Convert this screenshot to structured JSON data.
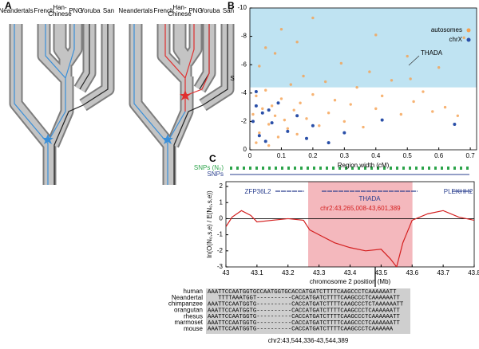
{
  "panel_labels": [
    "A",
    "B",
    "C"
  ],
  "tree_labels": [
    "Neandertals",
    "French",
    "Han-\nChinese",
    "PNG",
    "Yoruba",
    "San"
  ],
  "chart_data": [
    {
      "type": "scatter",
      "xlabel": "Region width (cM)",
      "ylabel": "S",
      "xlim": [
        0,
        0.72
      ],
      "ylim": [
        0,
        -10
      ],
      "xticks": [
        0,
        0.1,
        0.2,
        0.3,
        0.4,
        0.5,
        0.6,
        0.7
      ],
      "yticks": [
        -10,
        -8,
        -6,
        -4,
        -2,
        0
      ],
      "highlight_range": [
        -10,
        -4.4
      ],
      "highlight_color": "#bfe3f2",
      "legend": "upper right",
      "annotation": "THADA",
      "series": [
        {
          "name": "autosomes",
          "color": "#f5a050",
          "x": [
            0.01,
            0.02,
            0.03,
            0.04,
            0.05,
            0.06,
            0.07,
            0.08,
            0.09,
            0.1,
            0.11,
            0.12,
            0.13,
            0.14,
            0.15,
            0.16,
            0.17,
            0.18,
            0.2,
            0.22,
            0.24,
            0.25,
            0.27,
            0.29,
            0.3,
            0.32,
            0.34,
            0.36,
            0.38,
            0.4,
            0.42,
            0.45,
            0.48,
            0.5,
            0.51,
            0.52,
            0.55,
            0.58,
            0.6,
            0.62,
            0.66,
            0.68,
            0.05,
            0.1,
            0.2,
            0.03,
            0.08,
            0.15,
            0.4,
            0.02,
            0.06
          ],
          "values": [
            -2.5,
            -3.8,
            -1.2,
            -2.9,
            -4.2,
            -1.8,
            -3.1,
            -2.4,
            -0.9,
            -3.6,
            -2.1,
            -1.5,
            -4.6,
            -2.8,
            -1.1,
            -3.3,
            -5.2,
            -2.2,
            -3.9,
            -1.7,
            -4.8,
            -2.6,
            -3.5,
            -6.1,
            -2.0,
            -3.2,
            -4.4,
            -1.6,
            -5.5,
            -2.9,
            -3.8,
            -4.9,
            -2.5,
            -6.6,
            -5.0,
            -3.4,
            -4.1,
            -2.7,
            -5.8,
            -3.0,
            -2.4,
            -7.9,
            -7.2,
            -8.5,
            -9.3,
            -5.9,
            -6.8,
            -7.6,
            -8.1,
            -0.5,
            -0.3
          ]
        },
        {
          "name": "chrX",
          "color": "#2a4fa8",
          "x": [
            0.01,
            0.02,
            0.03,
            0.04,
            0.05,
            0.07,
            0.09,
            0.12,
            0.15,
            0.18,
            0.2,
            0.25,
            0.3,
            0.42,
            0.65,
            0.02,
            0.06
          ],
          "values": [
            -2.0,
            -3.1,
            -1.0,
            -2.6,
            -0.6,
            -1.9,
            -3.3,
            -1.3,
            -2.4,
            -0.8,
            -1.7,
            -0.5,
            -1.2,
            -2.1,
            -1.8,
            -4.1,
            -2.8
          ]
        }
      ]
    },
    {
      "type": "line",
      "xlabel": "chromosome 2 position (Mb)",
      "ylabel": "ln(O(N₀,s,e) / E(N₀,s,e))",
      "xlim": [
        43.0,
        43.8
      ],
      "ylim": [
        -3,
        2.3
      ],
      "xticks": [
        43.0,
        43.1,
        43.2,
        43.3,
        43.4,
        43.5,
        43.6,
        43.7,
        43.8
      ],
      "yticks": [
        -3,
        -2,
        -1,
        0,
        1,
        2
      ],
      "tracks": [
        "SNPs (N₀)",
        "SNPs"
      ],
      "genes": [
        "ZFP36L2",
        "THADA",
        "PLEKHH2"
      ],
      "highlight": {
        "range": [
          43.265,
          43.601
        ],
        "label": "chr2:43,265,008-43,601,389",
        "color": "#f4b8bd"
      },
      "x": [
        43.0,
        43.02,
        43.05,
        43.08,
        43.1,
        43.15,
        43.2,
        43.25,
        43.27,
        43.3,
        43.35,
        43.4,
        43.45,
        43.5,
        43.53,
        43.55,
        43.57,
        43.6,
        43.65,
        43.7,
        43.75,
        43.8
      ],
      "series": [
        {
          "color": "#d42020",
          "values": [
            -0.5,
            0.1,
            0.5,
            0.2,
            -0.2,
            -0.1,
            0.0,
            -0.1,
            -0.7,
            -1.0,
            -1.5,
            -1.8,
            -2.0,
            -1.9,
            -2.5,
            -3.0,
            -1.5,
            -0.1,
            0.3,
            0.5,
            0.1,
            -0.1
          ]
        }
      ]
    }
  ],
  "alignment": {
    "species": [
      "human",
      "Neandertal",
      "chimpanzee",
      "orangutan",
      "rhesus",
      "marmoset",
      "mouse"
    ],
    "sequences": [
      "AAATTCCAATGGTGCCAATGGTGCACCATGATCTTTTCAAGCCCTCAAAAAATT",
      "   TTTTAAATGGT----------CACCATGATCTTTTCAAGCCCTCAAAAAATT",
      "AAATTCCAATGGTG----------CACCATGATCTTTTCAAGCCCTCTAAAAAATT",
      "AAATTCCAATGGTG----------CACCATGATCTTTTCAAGCCCTCAAAAAATT",
      "AAATTCCAATGGTG----------CACCATGATCTTTTCAAGCCCTCAAAAAATT",
      "AAATTCCAATGGTG----------CACCATGATCTTTTCAAGCCCTCAAAAAATT",
      "AAATTCCAATGGTG----------CACCATGATCTTTTCAAGCCCTCAAAAAA"
    ],
    "label": "chr2:43,544,336-43,544,389"
  }
}
